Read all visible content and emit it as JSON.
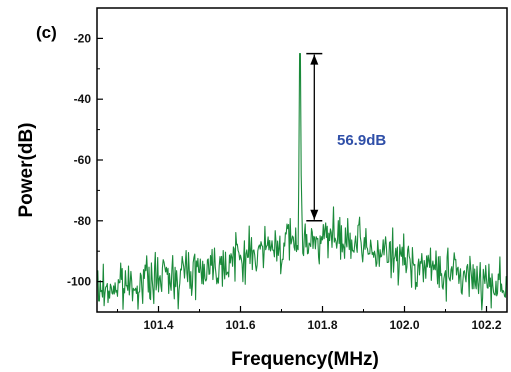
{
  "chart_data": {
    "type": "line",
    "panel_label": "(c)",
    "xlabel": "Frequency(MHz)",
    "ylabel": "Power(dB)",
    "xlim": [
      101.25,
      102.25
    ],
    "ylim": [
      -110,
      -10
    ],
    "x_ticks": [
      101.4,
      101.6,
      101.8,
      102.0,
      102.2
    ],
    "x_tick_labels": [
      "101.4",
      "101.6",
      "101.8",
      "102.0",
      "102.2"
    ],
    "y_ticks": [
      -20,
      -40,
      -60,
      -80,
      -100
    ],
    "y_tick_labels": [
      "-20",
      "-40",
      "-60",
      "-80",
      "-100"
    ],
    "grid": false,
    "line_color": "#1a8a3a",
    "series": [
      {
        "peak": {
          "x": 101.745,
          "y": -25
        },
        "noise_envelope": {
          "x": [
            101.25,
            101.4,
            101.55,
            101.7,
            101.8,
            101.95,
            102.1,
            102.25
          ],
          "y": [
            -103,
            -99,
            -94,
            -88,
            -85,
            -91,
            -97,
            -101
          ]
        }
      }
    ],
    "annotation": {
      "text": "56.9dB",
      "color": "#2f4fa8",
      "x": 101.78,
      "y_top": -25,
      "y_bottom": -80
    }
  }
}
